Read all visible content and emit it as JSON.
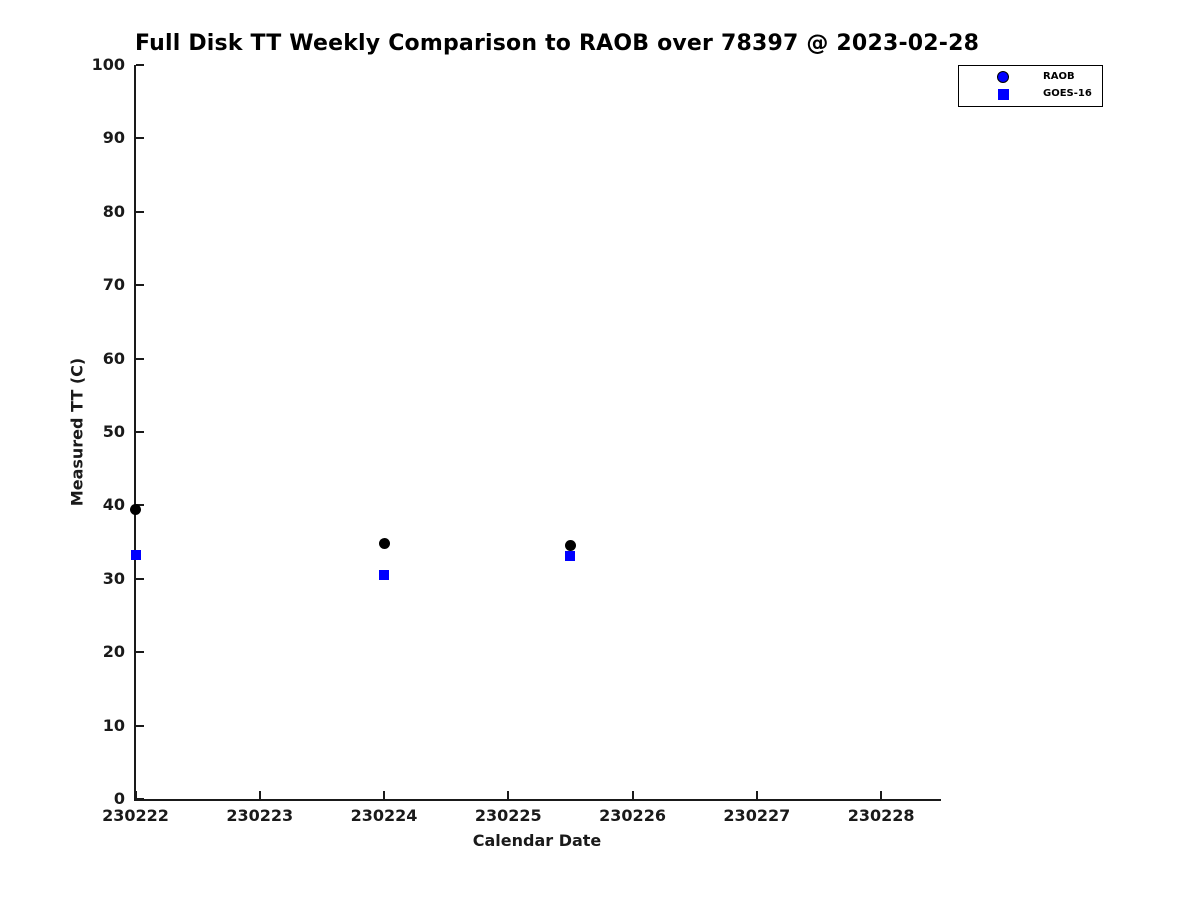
{
  "window": {
    "background": "#ffffff"
  },
  "colors": {
    "axis": "#1a1a1a",
    "title_text": "#000000",
    "raob_plot_marker": "#000000",
    "goes16_plot_marker": "#0000ff",
    "legend_marker_blue": "#0000ff",
    "legend_border": "#000000"
  },
  "chart_data": {
    "type": "scatter",
    "title": "Full Disk TT Weekly Comparison to RAOB over 78397 @ 2023-02-28",
    "xlabel": "Calendar Date",
    "ylabel": "Measured TT (C)",
    "xlim": [
      230222,
      230228.47
    ],
    "ylim": [
      0,
      100
    ],
    "xticks": [
      230222,
      230223,
      230224,
      230225,
      230226,
      230227,
      230228
    ],
    "yticks": [
      0,
      10,
      20,
      30,
      40,
      50,
      60,
      70,
      80,
      90,
      100
    ],
    "grid": false,
    "legend": {
      "position": "upper-right-outside",
      "entries": [
        {
          "label": "RAOB",
          "marker": "circle",
          "color": "#0000ff"
        },
        {
          "label": "GOES-16",
          "marker": "square",
          "color": "#0000ff"
        }
      ]
    },
    "series": [
      {
        "name": "RAOB",
        "marker": "circle",
        "color": "#000000",
        "marker_size": 11,
        "points": [
          [
            230222.0,
            39.4
          ],
          [
            230224.0,
            34.8
          ],
          [
            230225.5,
            34.5
          ]
        ]
      },
      {
        "name": "GOES-16",
        "marker": "square",
        "color": "#0000ff",
        "marker_size": 10,
        "points": [
          [
            230222.0,
            33.2
          ],
          [
            230224.0,
            30.5
          ],
          [
            230225.5,
            33.1
          ]
        ]
      }
    ]
  }
}
